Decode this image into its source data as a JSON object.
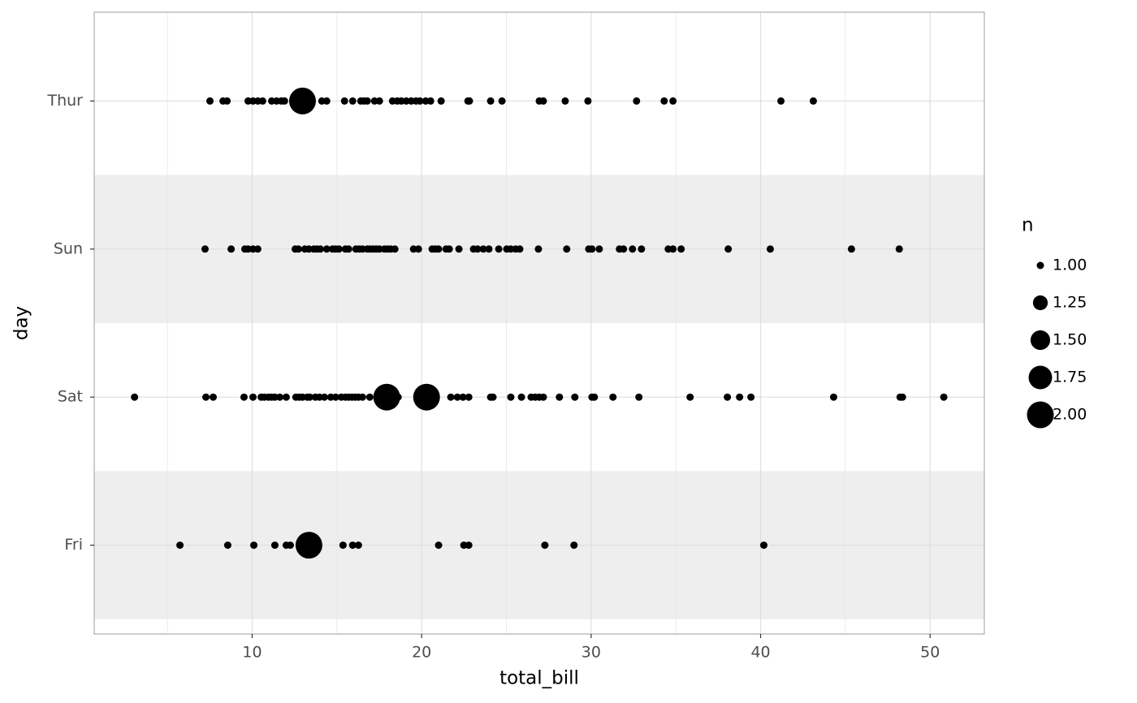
{
  "chart_data": {
    "type": "scatter",
    "x_label": "total_bill",
    "y_label": "day",
    "categories": [
      "Fri",
      "Sat",
      "Sun",
      "Thur"
    ],
    "rows": [
      {
        "x": [
          5.74,
          8.56,
          10.1,
          11.34,
          12.01,
          12.25,
          13.35,
          15.36,
          15.93,
          16.27,
          21.0,
          22.49,
          22.78,
          27.27,
          28.99,
          40.19
        ],
        "n": [
          1,
          1,
          1,
          1,
          1,
          1,
          2,
          1,
          1,
          1,
          1,
          1,
          1,
          1,
          1,
          1
        ]
      },
      {
        "x": [
          3.06,
          7.27,
          7.7,
          9.52,
          10.05,
          10.53,
          10.72,
          10.96,
          11.15,
          11.34,
          11.63,
          12.01,
          12.58,
          12.78,
          12.97,
          13.25,
          13.4,
          13.73,
          13.97,
          14.26,
          14.64,
          14.93,
          15.26,
          15.5,
          15.69,
          15.89,
          16.08,
          16.27,
          16.51,
          16.94,
          17.94,
          18.61,
          20.29,
          21.72,
          22.11,
          22.44,
          22.78,
          24.07,
          24.21,
          25.26,
          25.89,
          26.46,
          26.7,
          26.94,
          27.18,
          28.13,
          29.04,
          30.05,
          30.19,
          31.29,
          32.82,
          35.84,
          38.04,
          38.76,
          39.43,
          44.31,
          48.23,
          48.37,
          50.81
        ],
        "n": [
          1,
          1,
          1,
          1,
          1,
          1,
          1,
          1,
          1,
          1,
          1,
          1,
          1,
          1,
          1,
          1,
          1,
          1,
          1,
          1,
          1,
          1,
          1,
          1,
          1,
          1,
          1,
          1,
          1,
          1,
          2,
          1,
          2,
          1,
          1,
          1,
          1,
          1,
          1,
          1,
          1,
          1,
          1,
          1,
          1,
          1,
          1,
          1,
          1,
          1,
          1,
          1,
          1,
          1,
          1,
          1,
          1,
          1,
          1
        ]
      },
      {
        "x": [
          7.22,
          8.76,
          9.57,
          9.76,
          10.05,
          10.33,
          12.54,
          12.73,
          13.11,
          13.35,
          13.64,
          13.83,
          14.02,
          14.4,
          14.74,
          14.93,
          15.12,
          15.5,
          15.69,
          16.12,
          16.32,
          16.51,
          16.79,
          16.94,
          17.13,
          17.32,
          17.51,
          17.8,
          17.99,
          18.18,
          18.42,
          19.52,
          19.81,
          20.62,
          20.81,
          21.0,
          21.44,
          21.63,
          22.2,
          23.06,
          23.3,
          23.64,
          23.97,
          24.55,
          25.02,
          25.26,
          25.55,
          25.79,
          26.89,
          28.56,
          29.86,
          30.05,
          30.48,
          31.67,
          31.91,
          32.44,
          32.97,
          34.55,
          34.83,
          35.31,
          38.09,
          40.57,
          45.36,
          48.18
        ],
        "n": [
          1,
          1,
          1,
          1,
          1,
          1,
          1,
          1,
          1,
          1,
          1,
          1,
          1,
          1,
          1,
          1,
          1,
          1,
          1,
          1,
          1,
          1,
          1,
          1,
          1,
          1,
          1,
          1,
          1,
          1,
          1,
          1,
          1,
          1,
          1,
          1,
          1,
          1,
          1,
          1,
          1,
          1,
          1,
          1,
          1,
          1,
          1,
          1,
          1,
          1,
          1,
          1,
          1,
          1,
          1,
          1,
          1,
          1,
          1,
          1,
          1,
          1,
          1,
          1
        ]
      },
      {
        "x": [
          7.51,
          8.28,
          8.52,
          9.76,
          10.05,
          10.34,
          10.62,
          11.15,
          11.44,
          11.72,
          11.91,
          12.97,
          14.11,
          14.4,
          15.45,
          15.93,
          16.41,
          16.6,
          16.79,
          17.22,
          17.51,
          18.28,
          18.56,
          18.8,
          19.09,
          19.38,
          19.67,
          19.9,
          20.24,
          20.53,
          21.15,
          22.73,
          22.82,
          24.07,
          24.74,
          26.94,
          27.18,
          28.47,
          29.81,
          32.68,
          34.31,
          34.83,
          41.2,
          43.11
        ],
        "n": [
          1,
          1,
          1,
          1,
          1,
          1,
          1,
          1,
          1,
          1,
          1,
          2,
          1,
          1,
          1,
          1,
          1,
          1,
          1,
          1,
          1,
          1,
          1,
          1,
          1,
          1,
          1,
          1,
          1,
          1,
          1,
          1,
          1,
          1,
          1,
          1,
          1,
          1,
          1,
          1,
          1,
          1,
          1,
          1
        ]
      }
    ],
    "color": "#000000",
    "xlim": [
      0.68,
      53.2
    ],
    "xticks": [
      10,
      20,
      30,
      40,
      50
    ],
    "grid": true,
    "size_legend": {
      "title": "n",
      "entries": [
        {
          "value": 1,
          "label": "1.00"
        },
        {
          "value": 1.25,
          "label": "1.25"
        },
        {
          "value": 1.5,
          "label": "1.50"
        },
        {
          "value": 1.75,
          "label": "1.75"
        },
        {
          "value": 2,
          "label": "2.00"
        }
      ]
    }
  }
}
